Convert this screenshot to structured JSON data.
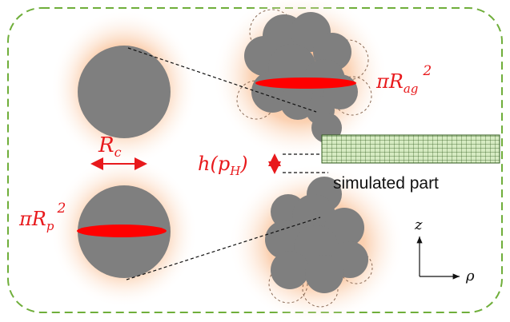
{
  "labels": {
    "cluster_radius": {
      "base": "R",
      "sub": "c"
    },
    "particle_area": {
      "prefix": "πR",
      "sub": "p",
      "sup": "2"
    },
    "aggregate_area": {
      "prefix": "πR",
      "sub": "ag",
      "sup": "2"
    },
    "gap_height": {
      "pre": "h(p",
      "sub": "H",
      "post": ")"
    },
    "simulated_part": "simulated part",
    "axis_z": "z",
    "axis_rho": "ρ"
  },
  "colors": {
    "border": "#6fae3a",
    "particle": "#7f7f7f",
    "glow": "#f7a66b",
    "highlight": "#ff0000",
    "grid_fill": "#d6ebc2",
    "grid_line": "#2f5a1c",
    "text_red": "#e8191c"
  }
}
